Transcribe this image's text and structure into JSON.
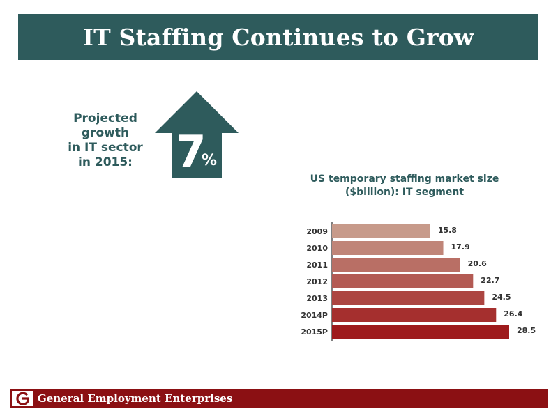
{
  "title": "IT Staffing Continues to Grow",
  "growth": {
    "label_lines": [
      "Projected",
      "growth",
      "in IT sector",
      "in 2015:"
    ],
    "value": "7",
    "unit": "%"
  },
  "footer": {
    "company": "General Employment Enterprises"
  },
  "colors": {
    "banner": "#2e5b5c",
    "footer": "#8b1013",
    "bar_gradient_start": "#c79a8a",
    "bar_gradient_end": "#9e1a1c"
  },
  "chart_data": {
    "type": "bar",
    "orientation": "horizontal",
    "title_lines": [
      "US temporary staffing market size",
      "($billion): IT segment"
    ],
    "categories": [
      "2009",
      "2010",
      "2011",
      "2012",
      "2013",
      "2014P",
      "2015P"
    ],
    "values": [
      15.8,
      17.9,
      20.6,
      22.7,
      24.5,
      26.4,
      28.5
    ],
    "value_labels": [
      "15.8",
      "17.9",
      "20.6",
      "22.7",
      "24.5",
      "26.4",
      "28.5"
    ],
    "xlim": [
      0,
      28.5
    ],
    "grid": false,
    "legend": "none"
  }
}
